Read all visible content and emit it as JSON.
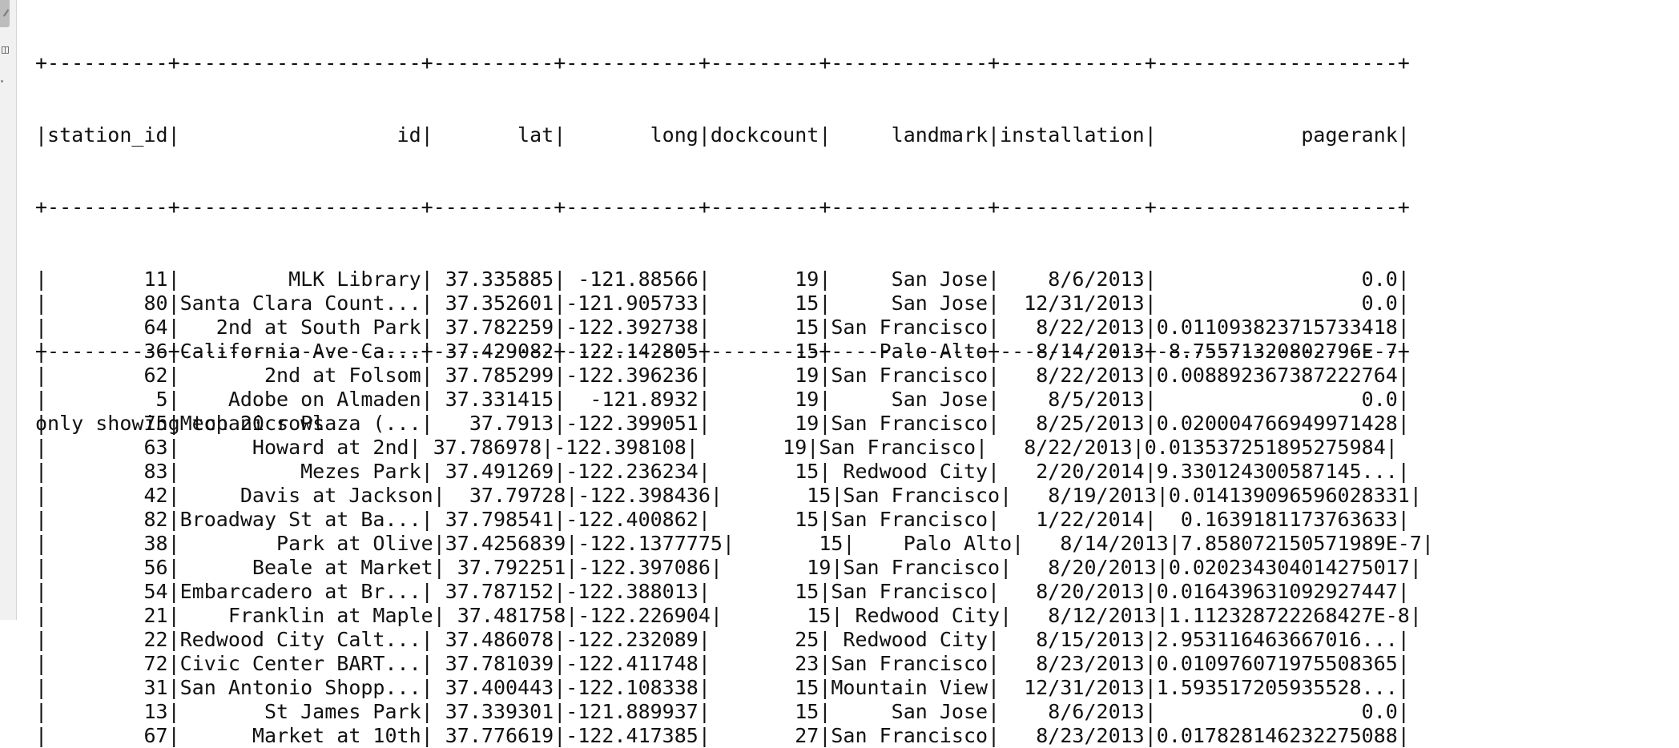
{
  "console": {
    "border_top": "+----------+--------------------+----------+-----------+---------+-------------+------------+--------------------+",
    "header_row": "|station_id|                  id|       lat|       long|dockcount|     landmark|installation|            pagerank|",
    "border_header": "+----------+--------------------+----------+-----------+---------+-------------+------------+--------------------+",
    "rows": [
      "|        11|         MLK Library| 37.335885| -121.88566|       19|     San Jose|    8/6/2013|                 0.0|",
      "|        80|Santa Clara Count...| 37.352601|-121.905733|       15|     San Jose|  12/31/2013|                 0.0|",
      "|        64|   2nd at South Park| 37.782259|-122.392738|       15|San Francisco|   8/22/2013|0.011093823715733418|",
      "|        36|California Ave Ca...| 37.429082|-122.142805|       15|    Palo Alto|   8/14/2013| 8.75571320802796E-7|",
      "|        62|       2nd at Folsom| 37.785299|-122.396236|       19|San Francisco|   8/22/2013|0.008892367387222764|",
      "|         5|    Adobe on Almaden| 37.331415|  -121.8932|       19|     San Jose|    8/5/2013|                 0.0|",
      "|        75|Mechanics Plaza (...|   37.7913|-122.399051|       19|San Francisco|   8/25/2013|0.020004766949971428|",
      "|        63|      Howard at 2nd| 37.786978|-122.398108|       19|San Francisco|   8/22/2013|0.013537251895275984|",
      "|        83|          Mezes Park| 37.491269|-122.236234|       15| Redwood City|   2/20/2014|9.330124300587145...|",
      "|        42|     Davis at Jackson|  37.79728|-122.398436|       15|San Francisco|   8/19/2013|0.014139096596028331|",
      "|        82|Broadway St at Ba...| 37.798541|-122.400862|       15|San Francisco|   1/22/2014|  0.1639181173763633|",
      "|        38|        Park at Olive|37.4256839|-122.1377775|       15|    Palo Alto|   8/14/2013|7.858072150571989E-7|",
      "|        56|      Beale at Market| 37.792251|-122.397086|       19|San Francisco|   8/20/2013|0.020234304014275017|",
      "|        54|Embarcadero at Br...| 37.787152|-122.388013|       15|San Francisco|   8/20/2013|0.016439631092927447|",
      "|        21|    Franklin at Maple| 37.481758|-122.226904|       15| Redwood City|   8/12/2013|1.112328722268427E-8|",
      "|        22|Redwood City Calt...| 37.486078|-122.232089|       25| Redwood City|   8/15/2013|2.953116463667016...|",
      "|        72|Civic Center BART...| 37.781039|-122.411748|       23|San Francisco|   8/23/2013|0.010976071975508365|",
      "|        31|San Antonio Shopp...| 37.400443|-122.108338|       15|Mountain View|  12/31/2013|1.593517205935528...|",
      "|        13|       St James Park| 37.339301|-121.889937|       15|     San Jose|    8/6/2013|                 0.0|",
      "|        67|      Market at 10th| 37.776619|-122.417385|       27|San Francisco|   8/23/2013|0.017828146232275088|"
    ],
    "border_bottom": "+----------+--------------------+----------+-----------+---------+-------------+------------+--------------------+",
    "footer": "only showing top 20 rows"
  }
}
